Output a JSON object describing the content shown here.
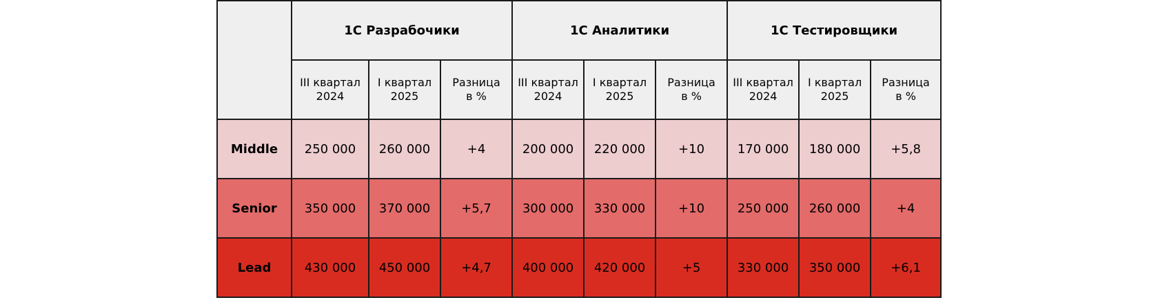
{
  "table": {
    "groups": [
      "1С Разрабочики",
      "1С Аналитики",
      "1С Тестировщики"
    ],
    "subheaders": [
      {
        "line1": "III квартал",
        "line2": "2024"
      },
      {
        "line1": "I квартал",
        "line2": "2025"
      },
      {
        "line1": "Разница",
        "line2": "в %"
      }
    ],
    "rows": [
      {
        "label": "Middle",
        "color": "#eecdcf",
        "cells": [
          "250 000",
          "260 000",
          "+4",
          "200 000",
          "220 000",
          "+10",
          "170 000",
          "180 000",
          "+5,8"
        ]
      },
      {
        "label": "Senior",
        "color": "#e36b6a",
        "cells": [
          "350 000",
          "370 000",
          "+5,7",
          "300 000",
          "330 000",
          "+10",
          "250 000",
          "260 000",
          "+4"
        ]
      },
      {
        "label": "Lead",
        "color": "#d92c21",
        "cells": [
          "430 000",
          "450 000",
          "+4,7",
          "400 000",
          "420 000",
          "+5",
          "330 000",
          "350 000",
          "+6,1"
        ]
      }
    ]
  },
  "colors": {
    "header_bg": "#efefef",
    "border": "#1a1a1a"
  }
}
